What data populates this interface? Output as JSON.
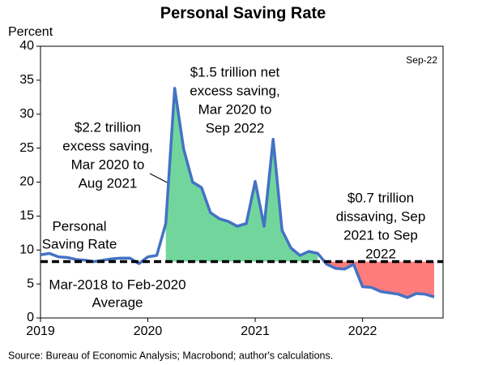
{
  "chart_data": {
    "type": "line",
    "title": "Personal Saving Rate",
    "y_label": "Percent",
    "source": "Source: Bureau of Economic Analysis; Macrobond; author's calculations.",
    "date_note": "Sep-22",
    "x": [
      2019.0,
      2019.083,
      2019.167,
      2019.25,
      2019.333,
      2019.417,
      2019.5,
      2019.583,
      2019.667,
      2019.75,
      2019.833,
      2019.917,
      2020.0,
      2020.083,
      2020.167,
      2020.25,
      2020.333,
      2020.417,
      2020.5,
      2020.583,
      2020.667,
      2020.75,
      2020.833,
      2020.917,
      2021.0,
      2021.083,
      2021.167,
      2021.25,
      2021.333,
      2021.417,
      2021.5,
      2021.583,
      2021.667,
      2021.75,
      2021.833,
      2021.917,
      2022.0,
      2022.083,
      2022.167,
      2022.25,
      2022.333,
      2022.417,
      2022.5,
      2022.583,
      2022.667
    ],
    "series": [
      {
        "name": "Personal Saving Rate",
        "name_lines": [
          "Personal",
          "Saving Rate"
        ],
        "color": "#4472c4",
        "values": [
          9.3,
          9.5,
          9.0,
          8.9,
          8.6,
          8.5,
          8.3,
          8.5,
          8.7,
          8.8,
          8.8,
          8.0,
          9.0,
          9.2,
          13.9,
          33.8,
          24.9,
          20.0,
          19.2,
          15.5,
          14.6,
          14.2,
          13.5,
          13.9,
          20.1,
          13.5,
          26.3,
          12.9,
          10.3,
          9.2,
          9.8,
          9.5,
          7.9,
          7.3,
          7.2,
          7.9,
          4.6,
          4.5,
          3.9,
          3.7,
          3.5,
          3.0,
          3.6,
          3.5,
          3.1
        ]
      }
    ],
    "reference_line": {
      "value": 8.3,
      "label_lines": [
        "Mar-2018 to Feb-2020",
        "Average"
      ],
      "color": "#000000"
    },
    "areas": [
      {
        "start": 2020.167,
        "end": 2021.583,
        "color": "#72d69c",
        "text_color": "#70ad47",
        "label_lines": [
          "$2.2 trillion",
          "excess saving,",
          "Mar 2020 to",
          "Aug 2021"
        ]
      },
      {
        "start": 2021.667,
        "end": 2022.667,
        "color": "#ff7c7c",
        "text_color": "#ff0000",
        "label_lines": [
          "$0.7 trillion",
          "dissaving, Sep",
          "2021 to Sep",
          "2022"
        ]
      }
    ],
    "annotation_lines": [
      "$1.5 trillion net",
      "excess saving,",
      "Mar 2020 to",
      "Sep 2022"
    ],
    "xlim": [
      2019,
      2022.75
    ],
    "xticks": [
      2019,
      2020,
      2021,
      2022
    ],
    "ylim": [
      0,
      40
    ],
    "yticks": [
      0,
      5,
      10,
      15,
      20,
      25,
      30,
      35,
      40
    ]
  }
}
